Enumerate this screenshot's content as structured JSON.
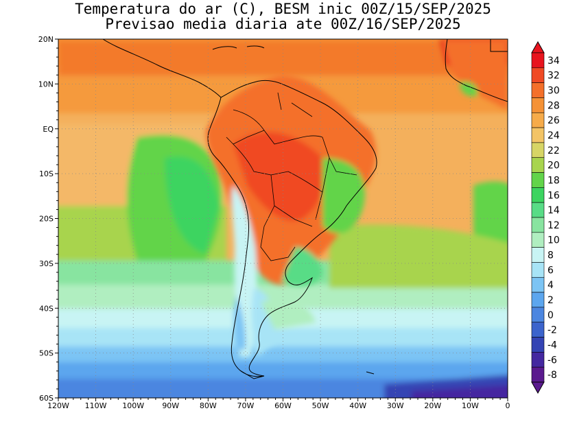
{
  "title_line1": "Temperatura do ar (C), BESM inic 00Z/15/SEP/2025",
  "title_line2": "Previsao media diaria ate 00Z/16/SEP/2025",
  "x_ticks": [
    "120W",
    "110W",
    "100W",
    "90W",
    "80W",
    "70W",
    "60W",
    "50W",
    "40W",
    "30W",
    "20W",
    "10W",
    "0"
  ],
  "y_ticks": [
    "20N",
    "10N",
    "EQ",
    "10S",
    "20S",
    "30S",
    "40S",
    "50S",
    "60S"
  ],
  "colorbar": {
    "labels": [
      "34",
      "32",
      "30",
      "28",
      "26",
      "24",
      "22",
      "20",
      "18",
      "16",
      "14",
      "12",
      "10",
      "8",
      "6",
      "4",
      "2",
      "0",
      "-2",
      "-4",
      "-6",
      "-8"
    ],
    "colors": [
      "#e8141e",
      "#f04a24",
      "#f4702a",
      "#f59236",
      "#f6ab4a",
      "#f3c466",
      "#d7d566",
      "#a8d44e",
      "#62d44a",
      "#3cd460",
      "#58dc86",
      "#88e4a0",
      "#b0eec0",
      "#c8f4f4",
      "#a8e4f6",
      "#7cc4f4",
      "#5ca6ee",
      "#4c86e0",
      "#3c64cc",
      "#3444b4",
      "#4428a0",
      "#5a1a8e"
    ]
  }
}
